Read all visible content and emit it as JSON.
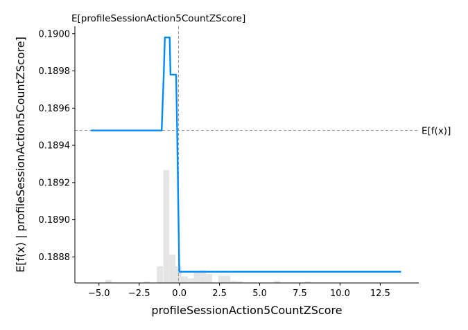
{
  "chart_data": {
    "type": "line",
    "title": "",
    "top_label": "E[profileSessionAction5CountZScore]",
    "xlabel": "profileSessionAction5CountZScore",
    "ylabel": "E[f(x) | profileSessionAction5CountZScore]",
    "xlim": [
      -6.5,
      14.9
    ],
    "ylim": [
      0.18866,
      0.19004
    ],
    "x_ticks": [
      -5.0,
      -2.5,
      0.0,
      2.5,
      5.0,
      7.5,
      10.0,
      12.5
    ],
    "x_tick_labels": [
      "−5.0",
      "−2.5",
      "0.0",
      "2.5",
      "5.0",
      "7.5",
      "10.0",
      "12.5"
    ],
    "y_ticks": [
      0.1888,
      0.189,
      0.1892,
      0.1894,
      0.1896,
      0.1898,
      0.19
    ],
    "y_tick_labels": [
      "0.1888",
      "0.1890",
      "0.1892",
      "0.1894",
      "0.1896",
      "0.1898",
      "0.1900"
    ],
    "expected_value": {
      "label": "E[f(x)]",
      "y": 0.18948
    },
    "expected_feature": {
      "x": -0.05
    },
    "series": [
      {
        "color": "#008bfb",
        "x": [
          -5.5,
          -1.1,
          -0.97,
          -0.9,
          -0.6,
          -0.55,
          -0.2,
          -0.15,
          0.0,
          13.8
        ],
        "y": [
          0.18948,
          0.18948,
          0.18978,
          0.18998,
          0.18998,
          0.18978,
          0.18978,
          0.18955,
          0.18872,
          0.18872
        ]
      }
    ],
    "histogram": {
      "color": "#e5e5e5",
      "bin_width": 0.38,
      "bins": [
        {
          "x": -4.6,
          "h": 0.012
        },
        {
          "x": -2.2,
          "h": 0.006
        },
        {
          "x": -1.4,
          "h": 0.065
        },
        {
          "x": -1.0,
          "h": 0.44
        },
        {
          "x": -0.62,
          "h": 0.11
        },
        {
          "x": -0.24,
          "h": 0.065
        },
        {
          "x": 0.14,
          "h": 0.026
        },
        {
          "x": 0.52,
          "h": 0.018
        },
        {
          "x": 0.9,
          "h": 0.04
        },
        {
          "x": 1.28,
          "h": 0.05
        },
        {
          "x": 1.66,
          "h": 0.035
        },
        {
          "x": 2.42,
          "h": 0.028
        },
        {
          "x": 2.8,
          "h": 0.028
        },
        {
          "x": 3.18,
          "h": 0.008
        },
        {
          "x": 3.56,
          "h": 0.006
        },
        {
          "x": 5.9,
          "h": 0.008
        },
        {
          "x": 7.8,
          "h": 0.006
        }
      ]
    }
  }
}
